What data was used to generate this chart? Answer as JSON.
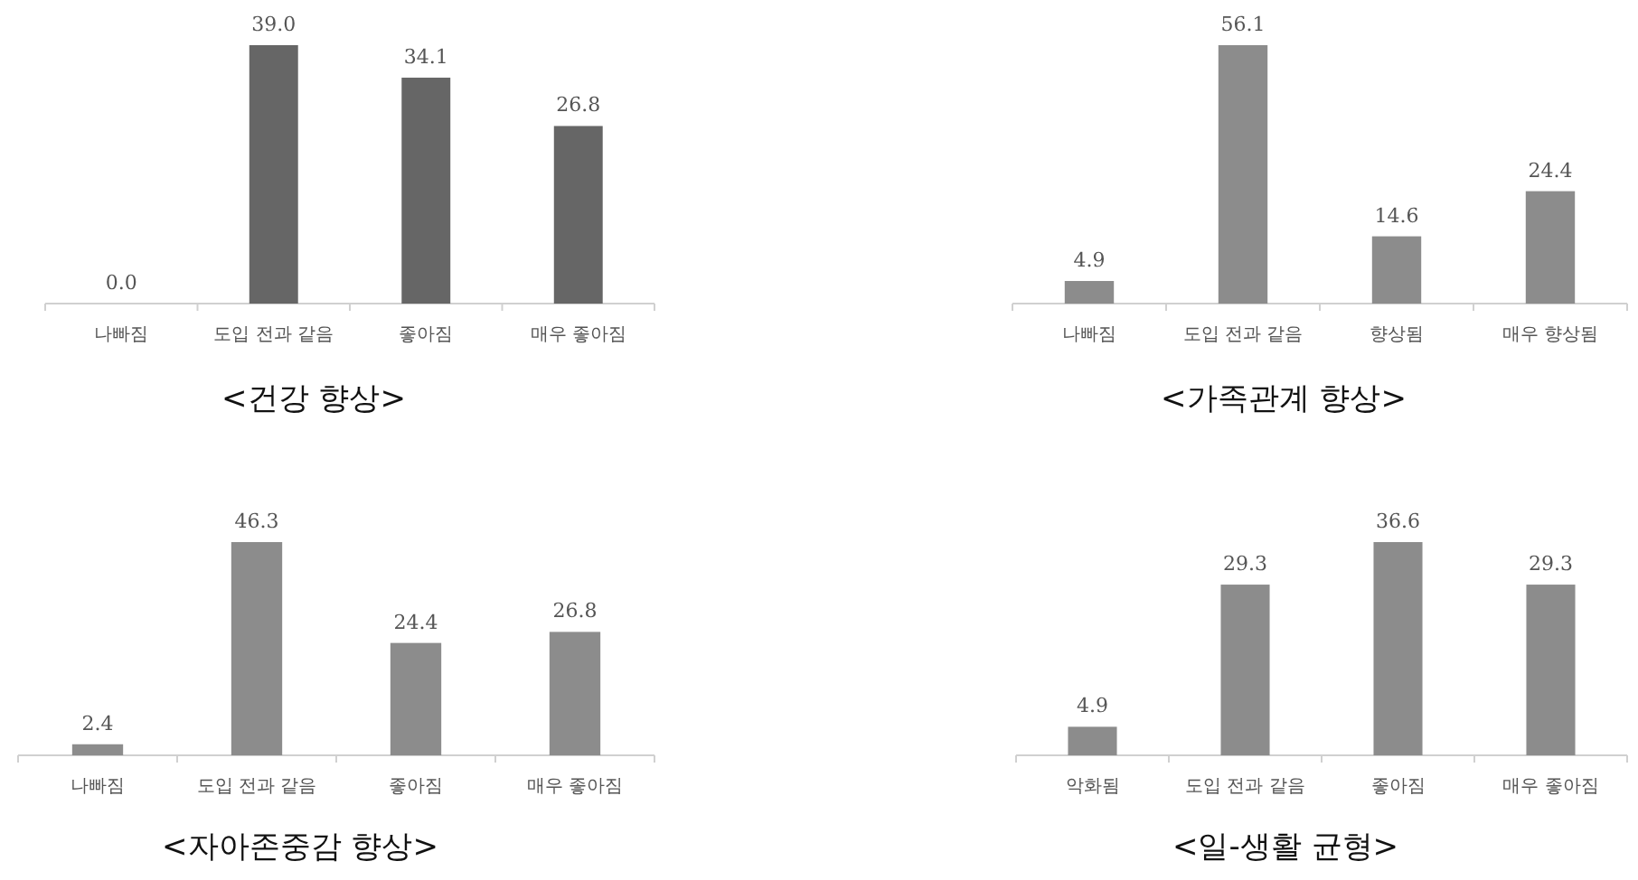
{
  "chart_data": [
    {
      "type": "bar",
      "title": "<건강 향상>",
      "categories": [
        "나빠짐",
        "도입 전과 같음",
        "좋아짐",
        "매우 좋아짐"
      ],
      "values": [
        0.0,
        39.0,
        34.1,
        26.8
      ],
      "value_labels": [
        "0.0",
        "39.0",
        "34.1",
        "26.8"
      ],
      "color": "#666666"
    },
    {
      "type": "bar",
      "title": "<가족관계 향상>",
      "categories": [
        "나빠짐",
        "도입 전과 같음",
        "향상됨",
        "매우 향상됨"
      ],
      "values": [
        4.9,
        56.1,
        14.6,
        24.4
      ],
      "value_labels": [
        "4.9",
        "56.1",
        "14.6",
        "24.4"
      ],
      "color": "#8c8c8c"
    },
    {
      "type": "bar",
      "title": "<자아존중감 향상>",
      "categories": [
        "나빠짐",
        "도입 전과 같음",
        "좋아짐",
        "매우 좋아짐"
      ],
      "values": [
        2.4,
        46.3,
        24.4,
        26.8
      ],
      "value_labels": [
        "2.4",
        "46.3",
        "24.4",
        "26.8"
      ],
      "color": "#8c8c8c"
    },
    {
      "type": "bar",
      "title": "<일-생활 균형>",
      "categories": [
        "악화됨",
        "도입 전과 같음",
        "좋아짐",
        "매우 좋아짐"
      ],
      "values": [
        4.9,
        29.3,
        36.6,
        29.3
      ],
      "value_labels": [
        "4.9",
        "29.3",
        "36.6",
        "29.3"
      ],
      "color": "#8c8c8c"
    }
  ]
}
